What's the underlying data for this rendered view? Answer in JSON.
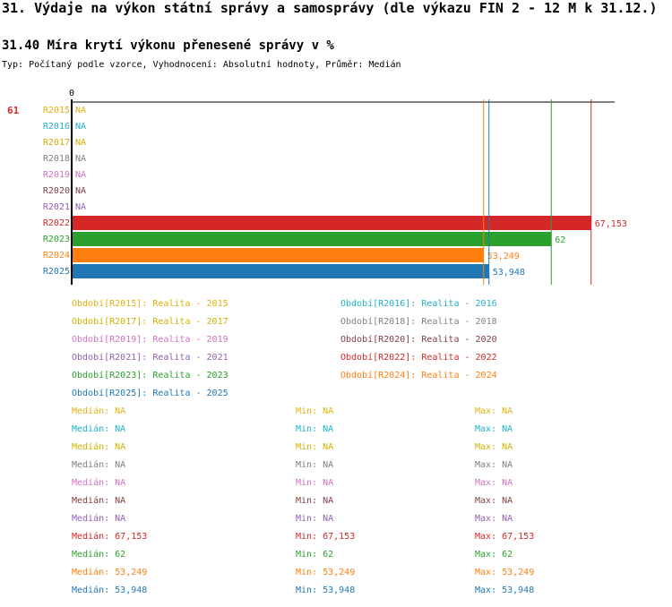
{
  "header": {
    "title": "31. Výdaje na výkon státní správy a samosprávy (dle výkazu FIN 2 - 12 M k 31.12.)",
    "subtitle": "31.40 Míra krytí výkonu přenesené správy v %",
    "meta": "Typ: Počítaný podle vzorce, Vyhodnocení: Absolutní hodnoty, Průměr: Medián"
  },
  "chart_data": {
    "type": "bar",
    "orientation": "horizontal",
    "row_value": "61",
    "zero_label": "0",
    "xlim": [
      0,
      69.5
    ],
    "categories": [
      "R2015",
      "R2016",
      "R2017",
      "R2018",
      "R2019",
      "R2020",
      "R2021",
      "R2022",
      "R2023",
      "R2024",
      "R2025"
    ],
    "values": [
      null,
      null,
      null,
      null,
      null,
      null,
      null,
      67.153,
      62,
      53.249,
      53.948
    ],
    "value_labels": [
      "NA",
      "NA",
      "NA",
      "NA",
      "NA",
      "NA",
      "NA",
      "67,153",
      "62",
      "53,249",
      "53,948"
    ],
    "colors": [
      "#e0b010",
      "#20b0c8",
      "#d0b000",
      "#808080",
      "#d070c0",
      "#804040",
      "#9060b0",
      "#d62728",
      "#2ca02c",
      "#ff7f0e",
      "#1f77b4"
    ],
    "reference_lines": [
      {
        "value": 53.249,
        "color": "#ff7f0e"
      },
      {
        "value": 53.948,
        "color": "#1f77b4"
      },
      {
        "value": 62,
        "color": "#2ca02c"
      },
      {
        "value": 67.153,
        "color": "#d62728"
      }
    ],
    "legend": [
      {
        "key": "Období[R2015]",
        "text": ": Realita - 2015"
      },
      {
        "key": "Období[R2016]",
        "text": ": Realita - 2016"
      },
      {
        "key": "Období[R2017]",
        "text": ": Realita - 2017"
      },
      {
        "key": "Období[R2018]",
        "text": ": Realita - 2018"
      },
      {
        "key": "Období[R2019]",
        "text": ": Realita - 2019"
      },
      {
        "key": "Období[R2020]",
        "text": ": Realita - 2020"
      },
      {
        "key": "Období[R2021]",
        "text": ": Realita - 2021"
      },
      {
        "key": "Období[R2022]",
        "text": ": Realita - 2022"
      },
      {
        "key": "Období[R2023]",
        "text": ": Realita - 2023"
      },
      {
        "key": "Období[R2024]",
        "text": ": Realita - 2024"
      },
      {
        "key": "Období[R2025]",
        "text": ": Realita - 2025"
      }
    ],
    "stats": [
      {
        "median": "Medián: NA",
        "min": "Min: NA",
        "max": "Max: NA"
      },
      {
        "median": "Medián: NA",
        "min": "Min: NA",
        "max": "Max: NA"
      },
      {
        "median": "Medián: NA",
        "min": "Min: NA",
        "max": "Max: NA"
      },
      {
        "median": "Medián: NA",
        "min": "Min: NA",
        "max": "Max: NA"
      },
      {
        "median": "Medián: NA",
        "min": "Min: NA",
        "max": "Max: NA"
      },
      {
        "median": "Medián: NA",
        "min": "Min: NA",
        "max": "Max: NA"
      },
      {
        "median": "Medián: NA",
        "min": "Min: NA",
        "max": "Max: NA"
      },
      {
        "median": "Medián: 67,153",
        "min": "Min: 67,153",
        "max": "Max: 67,153"
      },
      {
        "median": "Medián: 62",
        "min": "Min: 62",
        "max": "Max: 62"
      },
      {
        "median": "Medián: 53,249",
        "min": "Min: 53,249",
        "max": "Max: 53,249"
      },
      {
        "median": "Medián: 53,948",
        "min": "Min: 53,948",
        "max": "Max: 53,948"
      }
    ]
  }
}
